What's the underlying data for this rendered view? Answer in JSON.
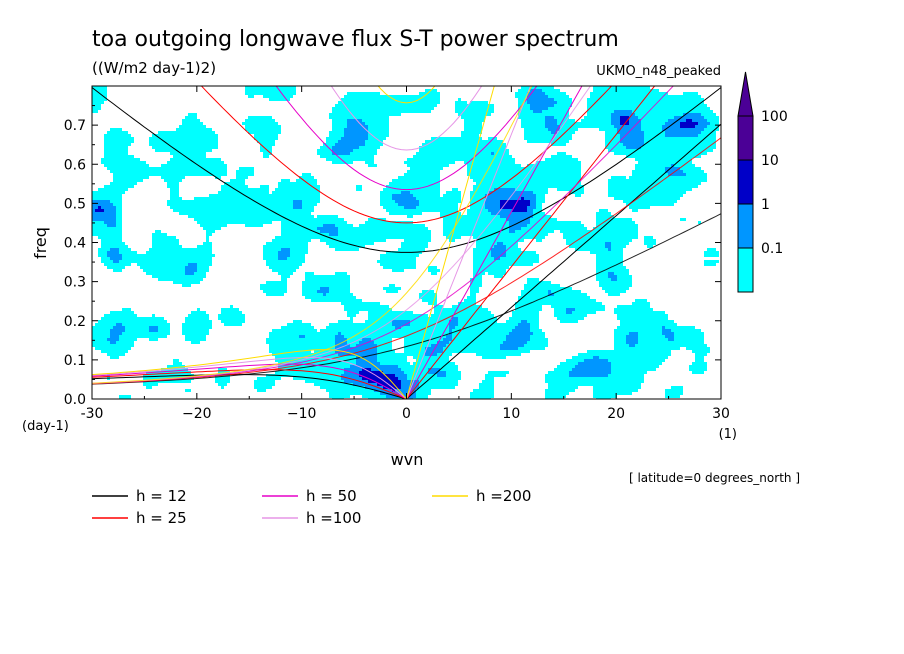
{
  "chart_data": {
    "type": "heatmap",
    "title": "toa outgoing longwave flux S-T power spectrum",
    "subtitle": "((W/m2 day-1)2)",
    "model_label": "UKMO_n48_peaked",
    "xlabel": "wvn",
    "ylabel": "freq",
    "x_unit": "(1)",
    "y_unit": "(day-1)",
    "xlim": [
      -30,
      30
    ],
    "ylim": [
      0,
      0.8
    ],
    "x_ticks": [
      -30,
      -20,
      -10,
      0,
      10,
      20,
      30
    ],
    "x_tick_labels": [
      "-30",
      "−20",
      "−10",
      "0",
      "10",
      "20",
      "30"
    ],
    "y_ticks": [
      0.0,
      0.1,
      0.2,
      0.3,
      0.4,
      0.5,
      0.6,
      0.7
    ],
    "y_tick_labels": [
      "0.0",
      "0.1",
      "0.2",
      "0.3",
      "0.4",
      "0.5",
      "0.6",
      "0.7"
    ],
    "contour_levels": [
      0.1,
      1,
      10,
      100
    ],
    "colorbar": {
      "labels": [
        "100",
        "10",
        "1",
        "0.1"
      ],
      "colors": [
        "#00ffff",
        "#0096ff",
        "#0000c8",
        "#4b0096"
      ]
    },
    "annotation": "[ latitude=0 degrees_north ]",
    "dispersion_curves": [
      {
        "name": "h = 12",
        "h": 12,
        "color": "#000000"
      },
      {
        "name": "h = 25",
        "h": 25,
        "color": "#ff0000"
      },
      {
        "name": "h = 50",
        "h": 50,
        "color": "#e600c8"
      },
      {
        "name": "h =100",
        "h": 100,
        "color": "#e696e6"
      },
      {
        "name": "h =200",
        "h": 200,
        "color": "#ffdc00"
      }
    ]
  }
}
